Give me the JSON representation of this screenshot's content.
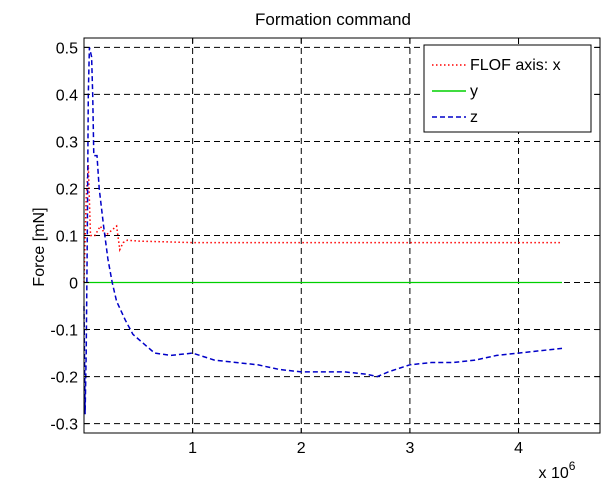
{
  "chart_data": {
    "type": "line",
    "title": "Formation command",
    "ylabel": "Force  [mN]",
    "xlabel": "",
    "x_multiplier_label": "x 10",
    "x_multiplier_exponent": "6",
    "xlim": [
      0,
      4.75
    ],
    "ylim": [
      -0.32,
      0.52
    ],
    "xticks": [
      1,
      2,
      3,
      4
    ],
    "xtick_labels": [
      "1",
      "2",
      "3",
      "4"
    ],
    "yticks": [
      -0.3,
      -0.2,
      -0.1,
      0,
      0.1,
      0.2,
      0.3,
      0.4,
      0.5
    ],
    "ytick_labels": [
      "-0.3",
      "-0.2",
      "-0.1",
      "0",
      "0.1",
      "0.2",
      "0.3",
      "0.4",
      "0.5"
    ],
    "grid": true,
    "legend_position": "top-right",
    "series": [
      {
        "name": "FLOF axis: x",
        "color": "#ff0000",
        "style": "dotted",
        "points": [
          [
            0.0,
            0.0
          ],
          [
            0.02,
            0.18
          ],
          [
            0.04,
            0.25
          ],
          [
            0.06,
            0.1
          ],
          [
            0.1,
            0.1
          ],
          [
            0.15,
            0.12
          ],
          [
            0.2,
            0.1
          ],
          [
            0.3,
            0.12
          ],
          [
            0.33,
            0.07
          ],
          [
            0.36,
            0.085
          ],
          [
            0.4,
            0.09
          ],
          [
            0.5,
            0.088
          ],
          [
            1.0,
            0.085
          ],
          [
            2.0,
            0.085
          ],
          [
            3.0,
            0.085
          ],
          [
            4.0,
            0.085
          ],
          [
            4.4,
            0.085
          ]
        ]
      },
      {
        "name": "y",
        "color": "#00d000",
        "style": "solid",
        "points": [
          [
            0.0,
            0.0
          ],
          [
            4.4,
            0.0
          ]
        ]
      },
      {
        "name": "z",
        "color": "#0000c8",
        "style": "dashed",
        "points": [
          [
            0.0,
            -0.05
          ],
          [
            0.01,
            -0.28
          ],
          [
            0.02,
            -0.15
          ],
          [
            0.03,
            0.1
          ],
          [
            0.04,
            0.4
          ],
          [
            0.05,
            0.5
          ],
          [
            0.07,
            0.48
          ],
          [
            0.08,
            0.4
          ],
          [
            0.09,
            0.27
          ],
          [
            0.12,
            0.27
          ],
          [
            0.14,
            0.2
          ],
          [
            0.18,
            0.12
          ],
          [
            0.22,
            0.05
          ],
          [
            0.26,
            0.0
          ],
          [
            0.3,
            -0.04
          ],
          [
            0.38,
            -0.08
          ],
          [
            0.45,
            -0.11
          ],
          [
            0.55,
            -0.13
          ],
          [
            0.65,
            -0.15
          ],
          [
            0.8,
            -0.155
          ],
          [
            1.0,
            -0.15
          ],
          [
            1.2,
            -0.165
          ],
          [
            1.4,
            -0.17
          ],
          [
            1.6,
            -0.175
          ],
          [
            1.8,
            -0.185
          ],
          [
            2.0,
            -0.19
          ],
          [
            2.2,
            -0.19
          ],
          [
            2.4,
            -0.19
          ],
          [
            2.6,
            -0.195
          ],
          [
            2.7,
            -0.2
          ],
          [
            2.8,
            -0.19
          ],
          [
            3.0,
            -0.175
          ],
          [
            3.2,
            -0.17
          ],
          [
            3.4,
            -0.17
          ],
          [
            3.6,
            -0.165
          ],
          [
            3.8,
            -0.155
          ],
          [
            4.0,
            -0.15
          ],
          [
            4.2,
            -0.145
          ],
          [
            4.4,
            -0.14
          ]
        ]
      }
    ]
  }
}
